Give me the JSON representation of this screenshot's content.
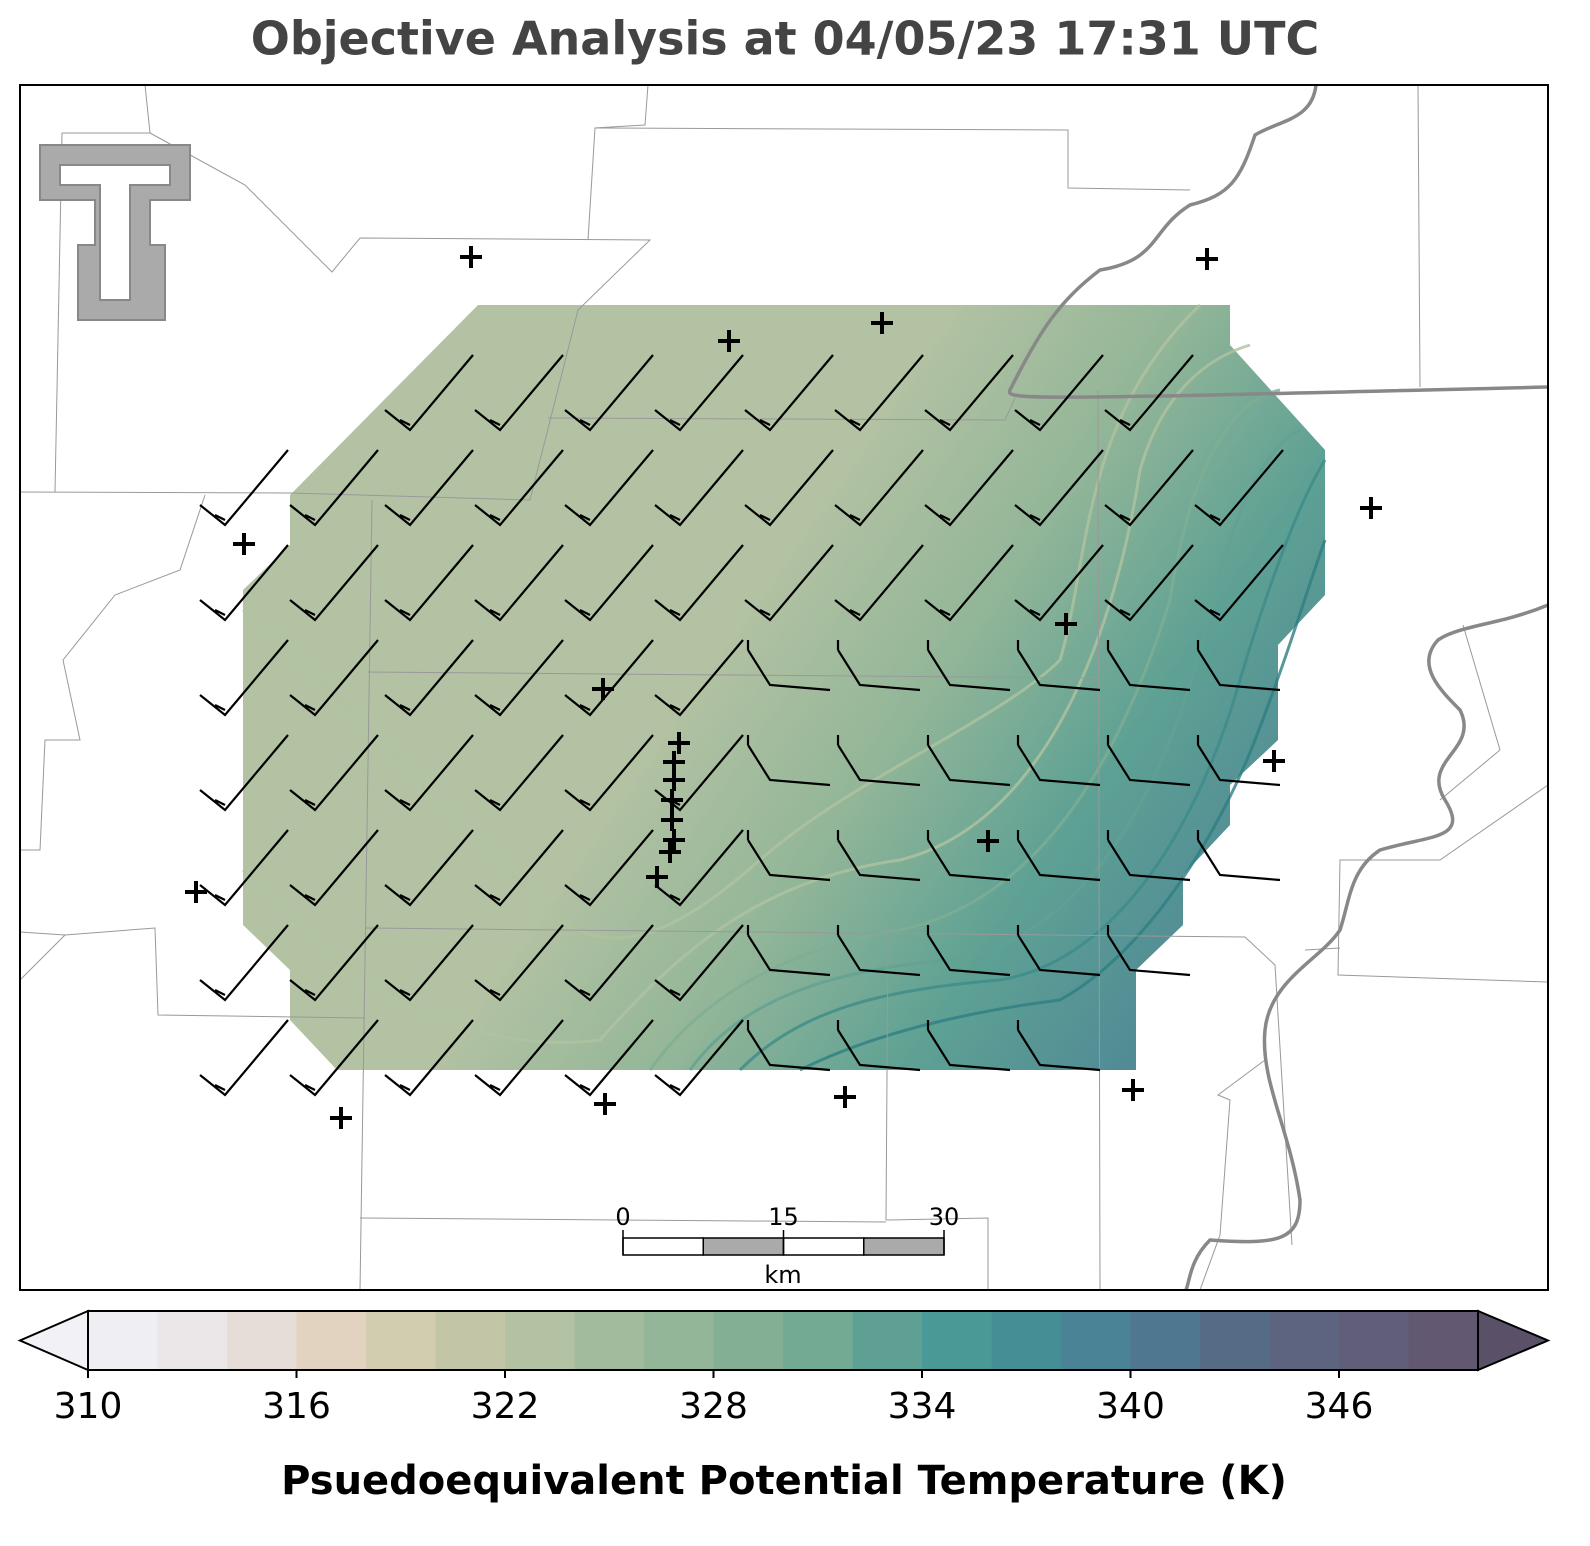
{
  "title": "Objective Analysis at 04/05/23 17:31 UTC",
  "colorbar": {
    "label": "Psuedoequivalent Potential Temperature (K)",
    "range": [
      310,
      350
    ],
    "ticks": [
      310,
      316,
      322,
      328,
      334,
      340,
      346
    ],
    "under_color": "#f2f1f6",
    "over_color": "#5a5068",
    "colors": [
      "#efeef2",
      "#ebe7e8",
      "#e6ddd8",
      "#e1d3c0",
      "#d3cdb0",
      "#c2c5a6",
      "#b3c2a3",
      "#a2bb9c",
      "#93b698",
      "#83b095",
      "#72aa94",
      "#5ea194",
      "#4b9996",
      "#468e96",
      "#4a8296",
      "#4f7790",
      "#566c86",
      "#5c6480",
      "#605e78",
      "#635872"
    ]
  },
  "scale_bar": {
    "ticks": [
      0,
      15,
      30
    ],
    "range": [
      0,
      30
    ],
    "unit": "km"
  }
}
